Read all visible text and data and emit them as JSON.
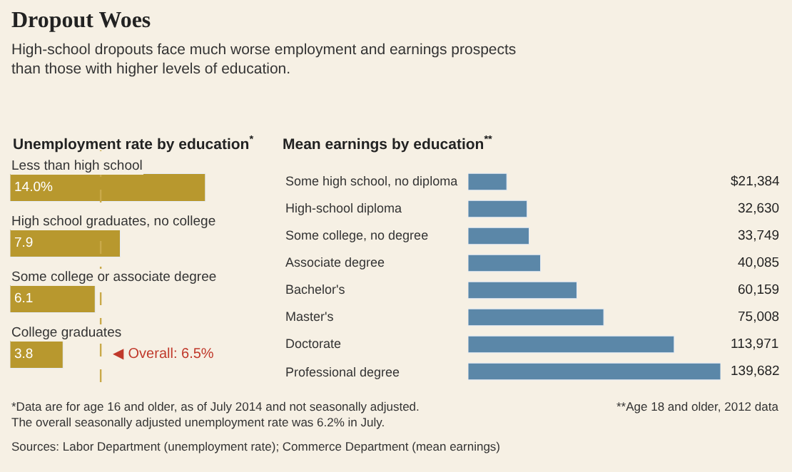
{
  "chart_data": [
    {
      "type": "other",
      "title": "Dropout Woes",
      "subtitle": "High-school dropouts face much worse employment and earnings prospects\nthan those with higher levels of education.",
      "annotations": [
        "*Data are for age 16 and older, as of July 2014 and not seasonally adjusted.\nThe overall seasonally adjusted unemployment rate was 6.2% in July.",
        "Sources: Labor Department (unemployment rate); Commerce Department (mean earnings)"
      ]
    },
    {
      "type": "bar",
      "orientation": "horizontal",
      "title": "Unemployment rate by education$^{*}$",
      "categories": [
        "Less than high school",
        "High school graduates, no college",
        "Some college or associate degree",
        "College graduates"
      ],
      "values": [
        14.0,
        7.9,
        6.1,
        3.8
      ],
      "value_labels": [
        "14.0%",
        "7.9",
        "6.1",
        "3.8"
      ],
      "color": "#b8982e",
      "ref_lines": [
        {
          "axis": "x",
          "value": 6.5,
          "label": "◀ Overall: 6.5%",
          "color": "#c9a94a",
          "line_style": "dashed"
        }
      ]
    },
    {
      "type": "bar",
      "orientation": "horizontal",
      "title": "Mean earnings by education$^{**}$",
      "categories": [
        "Some high school, no diploma",
        "High-school diploma",
        "Some college, no degree",
        "Associate degree",
        "Bachelor's",
        "Master's",
        "Doctorate",
        "Professional degree"
      ],
      "values": [
        21384,
        32630,
        33749,
        40085,
        60159,
        75008,
        113971,
        139682
      ],
      "value_labels": [
        "$21,384",
        "32,630",
        "33,749",
        "40,085",
        "60,159",
        "75,008",
        "113,971",
        "139,682"
      ],
      "color": "#5b87a8",
      "annotations": [
        "**Age 18 and older, 2012 data"
      ]
    }
  ]
}
